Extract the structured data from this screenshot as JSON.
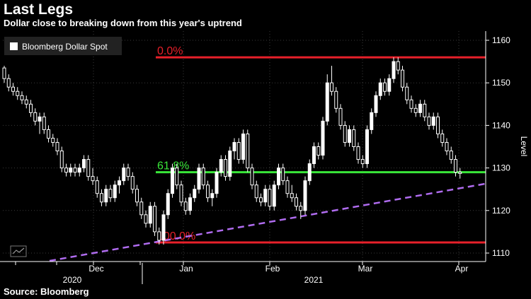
{
  "title": "Last Legs",
  "subtitle": "Dollar close to breaking down from this year's uptrend",
  "source": "Source: Bloomberg",
  "chart_data": {
    "type": "candlestick",
    "legend": {
      "label": "Bloomberg Dollar Spot",
      "placement": "top-left"
    },
    "ylabel": "Level",
    "ylim": [
      1107,
      1162
    ],
    "yticks": [
      1110,
      1120,
      1130,
      1140,
      1150,
      1160
    ],
    "x_month_labels": [
      "Dec",
      "Jan",
      "Feb",
      "Mar",
      "Apr"
    ],
    "x_year_labels": [
      "2020",
      "2021"
    ],
    "grid": true,
    "fib_levels": [
      {
        "label": "0.0%",
        "value": 1156,
        "color": "#e8202a"
      },
      {
        "label": "61.8%",
        "value": 1129,
        "color": "#39e639"
      },
      {
        "label": "100.0%",
        "value": 1112.5,
        "color": "#e8202a"
      }
    ],
    "trendline": {
      "from": {
        "i": 6,
        "value": 1107.8
      },
      "to": {
        "i": 109,
        "value": 1126.3
      },
      "color": "#b06cf0"
    },
    "candles": [
      [
        1153.5,
        1154,
        1150,
        1151
      ],
      [
        1151,
        1152,
        1148,
        1149
      ],
      [
        1149,
        1150,
        1147,
        1148
      ],
      [
        1148,
        1149,
        1146,
        1147
      ],
      [
        1147,
        1148,
        1145,
        1146
      ],
      [
        1146,
        1147,
        1144,
        1145
      ],
      [
        1145,
        1146,
        1142,
        1143
      ],
      [
        1143,
        1144,
        1140,
        1141
      ],
      [
        1141,
        1143,
        1138,
        1142
      ],
      [
        1142,
        1143,
        1138,
        1139
      ],
      [
        1139,
        1140,
        1136,
        1137
      ],
      [
        1137,
        1138,
        1135,
        1136
      ],
      [
        1136,
        1137,
        1133,
        1134
      ],
      [
        1134,
        1135,
        1129,
        1130
      ],
      [
        1130,
        1131,
        1128,
        1129
      ],
      [
        1129,
        1131,
        1128,
        1130
      ],
      [
        1130,
        1131,
        1128,
        1129
      ],
      [
        1129,
        1131,
        1128,
        1130
      ],
      [
        1130,
        1133,
        1129,
        1132
      ],
      [
        1132,
        1133,
        1127,
        1128
      ],
      [
        1128,
        1130,
        1126,
        1127
      ],
      [
        1127,
        1128,
        1123,
        1124
      ],
      [
        1124,
        1125,
        1121,
        1122
      ],
      [
        1122,
        1126,
        1121,
        1125
      ],
      [
        1125,
        1126,
        1122,
        1123
      ],
      [
        1123,
        1127,
        1122,
        1126
      ],
      [
        1126,
        1128,
        1124,
        1127
      ],
      [
        1127,
        1131,
        1126,
        1130
      ],
      [
        1130,
        1131,
        1127,
        1128
      ],
      [
        1128,
        1129,
        1124,
        1125
      ],
      [
        1125,
        1126,
        1121,
        1122
      ],
      [
        1122,
        1123,
        1118,
        1119
      ],
      [
        1119,
        1120,
        1116,
        1117
      ],
      [
        1117,
        1122,
        1116,
        1121
      ],
      [
        1121,
        1122,
        1114,
        1115
      ],
      [
        1115,
        1116,
        1112,
        1113
      ],
      [
        1113,
        1120,
        1112,
        1119
      ],
      [
        1119,
        1125,
        1118,
        1124
      ],
      [
        1124,
        1131,
        1123,
        1130
      ],
      [
        1130,
        1131,
        1125,
        1126
      ],
      [
        1126,
        1127,
        1121,
        1122
      ],
      [
        1122,
        1123,
        1119,
        1120
      ],
      [
        1120,
        1124,
        1119,
        1123
      ],
      [
        1123,
        1126,
        1122,
        1125
      ],
      [
        1125,
        1131,
        1124,
        1130
      ],
      [
        1130,
        1131,
        1125,
        1126
      ],
      [
        1126,
        1127,
        1122,
        1123
      ],
      [
        1123,
        1125,
        1121,
        1124
      ],
      [
        1124,
        1130,
        1123,
        1129
      ],
      [
        1129,
        1133,
        1128,
        1132
      ],
      [
        1132,
        1133,
        1127,
        1128
      ],
      [
        1128,
        1135,
        1127,
        1134
      ],
      [
        1134,
        1137,
        1132,
        1136
      ],
      [
        1136,
        1137,
        1131,
        1132
      ],
      [
        1132,
        1139,
        1131,
        1138
      ],
      [
        1138,
        1139,
        1129,
        1130
      ],
      [
        1130,
        1131,
        1125,
        1126
      ],
      [
        1126,
        1127,
        1122,
        1123
      ],
      [
        1123,
        1124,
        1121,
        1122
      ],
      [
        1122,
        1126,
        1121,
        1125
      ],
      [
        1125,
        1126,
        1120,
        1121
      ],
      [
        1121,
        1127,
        1120,
        1126
      ],
      [
        1126,
        1131,
        1125,
        1130
      ],
      [
        1130,
        1131,
        1126,
        1127
      ],
      [
        1127,
        1128,
        1123,
        1124
      ],
      [
        1124,
        1126,
        1122,
        1123
      ],
      [
        1123,
        1124,
        1120,
        1121
      ],
      [
        1121,
        1122,
        1118,
        1120
      ],
      [
        1120,
        1128,
        1119,
        1127
      ],
      [
        1127,
        1132,
        1126,
        1131
      ],
      [
        1131,
        1136,
        1130,
        1135
      ],
      [
        1135,
        1136,
        1132,
        1133
      ],
      [
        1133,
        1142,
        1132,
        1141
      ],
      [
        1141,
        1152,
        1140,
        1150
      ],
      [
        1150,
        1154,
        1147,
        1148
      ],
      [
        1148,
        1149,
        1143,
        1144
      ],
      [
        1144,
        1145,
        1139,
        1140
      ],
      [
        1140,
        1141,
        1135,
        1136
      ],
      [
        1136,
        1140,
        1135,
        1139
      ],
      [
        1139,
        1140,
        1134,
        1135
      ],
      [
        1135,
        1136,
        1131,
        1132
      ],
      [
        1132,
        1133,
        1130,
        1131
      ],
      [
        1131,
        1140,
        1130,
        1139
      ],
      [
        1139,
        1144,
        1138,
        1143
      ],
      [
        1143,
        1148,
        1142,
        1147
      ],
      [
        1147,
        1151,
        1146,
        1150
      ],
      [
        1150,
        1151,
        1147,
        1148
      ],
      [
        1148,
        1152,
        1147,
        1151
      ],
      [
        1151,
        1156,
        1150,
        1155
      ],
      [
        1155,
        1156,
        1152,
        1153
      ],
      [
        1153,
        1154,
        1148,
        1149
      ],
      [
        1149,
        1150,
        1145,
        1146
      ],
      [
        1146,
        1147,
        1143,
        1144
      ],
      [
        1144,
        1145,
        1142,
        1143
      ],
      [
        1143,
        1146,
        1142,
        1145
      ],
      [
        1145,
        1146,
        1141,
        1142
      ],
      [
        1142,
        1143,
        1139,
        1140
      ],
      [
        1140,
        1143,
        1139,
        1142
      ],
      [
        1142,
        1143,
        1137,
        1138
      ],
      [
        1138,
        1139,
        1135,
        1136
      ],
      [
        1136,
        1137,
        1133,
        1134
      ],
      [
        1134,
        1135,
        1131,
        1132
      ],
      [
        1132,
        1133,
        1128,
        1129
      ],
      [
        1129,
        1130,
        1127.5,
        1128.7
      ]
    ]
  }
}
